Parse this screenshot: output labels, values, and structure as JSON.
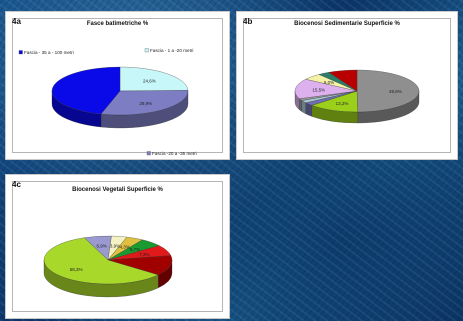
{
  "panels": [
    {
      "tag": "4a",
      "title": "Fasce batimetriche %",
      "chart_data": {
        "type": "pie",
        "title": "Fasce batimetriche %",
        "slices": [
          {
            "label": "Fascia - 1 a -20 metri",
            "value": 24.6,
            "value_label": "24,6%",
            "color": "#c8f7f9"
          },
          {
            "label": "Fascia -20 a -35 metri",
            "value": 29.9,
            "value_label": "29,9%",
            "color": "#7d7dc4"
          },
          {
            "label": "Fascia - 35 a - 100 metri",
            "value": 45.5,
            "value_label": "",
            "color": "#0a0ae8"
          }
        ]
      }
    },
    {
      "tag": "4b",
      "title": "Biocenosi Sedimentarie Superficie %",
      "chart_data": {
        "type": "pie",
        "title": "Biocenosi Sedimentarie Superficie %",
        "slices": [
          {
            "label": "",
            "value": 49.8,
            "value_label": "49,8%",
            "color": "#8f8f8f"
          },
          {
            "label": "",
            "value": 13.2,
            "value_label": "13,2%",
            "color": "#9bcf1a"
          },
          {
            "label": "",
            "value": 2.5,
            "value_label": "",
            "color": "#6f6fb0"
          },
          {
            "label": "",
            "value": 2.0,
            "value_label": "",
            "color": "#a8c8d8"
          },
          {
            "label": "",
            "value": 1.5,
            "value_label": "",
            "color": "#9a9a9a"
          },
          {
            "label": "",
            "value": 15.5,
            "value_label": "15,5%",
            "color": "#ddb0ee"
          },
          {
            "label": "",
            "value": 5.0,
            "value_label": "5,0%",
            "color": "#f4f2a6"
          },
          {
            "label": "",
            "value": 3.0,
            "value_label": "",
            "color": "#2a7e6a"
          },
          {
            "label": "",
            "value": 7.5,
            "value_label": "",
            "color": "#b80000"
          }
        ]
      }
    },
    {
      "tag": "4c",
      "title": "Biocenosi Vegetali Superficie %",
      "chart_data": {
        "type": "pie",
        "title": "Biocenosi Vegetali Superficie %",
        "slices": [
          {
            "label": "",
            "value": 6.9,
            "value_label": "6,9%",
            "color": "#9a9ad0"
          },
          {
            "label": "",
            "value": 3.9,
            "value_label": "3,9%",
            "color": "#f4f2c2"
          },
          {
            "label": "",
            "value": 4.3,
            "value_label": "4,3%",
            "color": "#e0c040"
          },
          {
            "label": "",
            "value": 5.7,
            "value_label": "5,7%",
            "color": "#1a9a30"
          },
          {
            "label": "",
            "value": 7.3,
            "value_label": "7,3%",
            "color": "#e01a1a"
          },
          {
            "label": "",
            "value": 13.6,
            "value_label": "",
            "color": "#a00000"
          },
          {
            "label": "",
            "value": 58.3,
            "value_label": "58,3%",
            "color": "#a8d82a"
          }
        ]
      }
    }
  ]
}
